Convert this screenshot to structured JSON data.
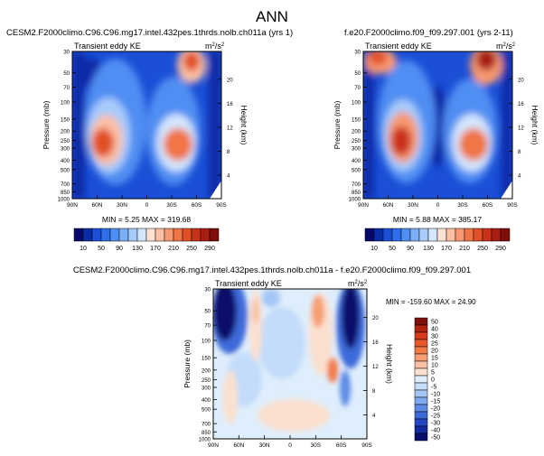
{
  "figure": {
    "title": "ANN"
  },
  "panels": [
    {
      "id": "top-left",
      "run": "CESM2.F2000climo.C96.C96.mg17.intel.432pes.1thrds.nolb.ch011a (yrs 1)",
      "subtitle": "Transient eddy KE",
      "units_base": "m",
      "units_sup1": "2",
      "units_slash": "/s",
      "units_sup2": "2",
      "stats": "MIN =   5.25   MAX = 319.68"
    },
    {
      "id": "top-right",
      "run": "f.e20.F2000climo.f09_f09.297.001 (yrs 2-11)",
      "subtitle": "Transient eddy KE",
      "units_base": "m",
      "units_sup1": "2",
      "units_slash": "/s",
      "units_sup2": "2",
      "stats": "MIN =   5.88   MAX = 385.17"
    },
    {
      "id": "bottom-diff",
      "run": "CESM2.F2000climo.C96.C96.mg17.intel.432pes.1thrds.nolb.ch011a - f.e20.F2000climo.f09_f09.297.001",
      "subtitle": "Transient eddy KE",
      "units_base": "m",
      "units_sup1": "2",
      "units_slash": "/s",
      "units_sup2": "2",
      "stats": "MIN = -159.60   MAX =  24.90"
    }
  ],
  "axes": {
    "ylabel": "Pressure (mb)",
    "ylabel_right": "Height (km)",
    "lat_ticks": [
      "90N",
      "60N",
      "30N",
      "0",
      "30S",
      "60S",
      "90S"
    ],
    "pressure_ticks": [
      "30",
      "50",
      "70",
      "100",
      "150",
      "200",
      "250",
      "300",
      "400",
      "500",
      "700",
      "850",
      "1000"
    ],
    "height_ticks": [
      "20",
      "16",
      "12",
      "8",
      "4"
    ]
  },
  "colorbar_top": {
    "labels": [
      "10",
      "50",
      "90",
      "130",
      "170",
      "210",
      "250",
      "290"
    ],
    "colors": [
      "#08086b",
      "#0b2ca8",
      "#1a4fd6",
      "#2e6ee8",
      "#4f8ef2",
      "#7aaef7",
      "#a7cbfb",
      "#d4e6fd",
      "#fde2d4",
      "#fbbfa4",
      "#f79970",
      "#f07446",
      "#e24f26",
      "#c9321a",
      "#a81e12",
      "#7d0e0a"
    ]
  },
  "colorbar_diff": {
    "labels": [
      "50",
      "40",
      "30",
      "25",
      "20",
      "15",
      "10",
      "5",
      "0",
      "-5",
      "-10",
      "-15",
      "-20",
      "-25",
      "-30",
      "-40",
      "-50"
    ],
    "colors": [
      "#7d0e0a",
      "#b3210f",
      "#d63a1d",
      "#e8572e",
      "#f27a48",
      "#f69e72",
      "#f9c1a3",
      "#fbe0cf",
      "#dfeefc",
      "#c3dcfa",
      "#a3c6f5",
      "#7faaef",
      "#5c8be6",
      "#3c6bd9",
      "#2246c2",
      "#122b9c",
      "#080f6b"
    ]
  },
  "chart_data": [
    {
      "type": "heatmap",
      "title": "Transient eddy KE",
      "run": "CESM2 C96 ch011a (yrs 1)",
      "x_axis": "latitude",
      "x_ticks": [
        "90N",
        "60N",
        "30N",
        "0",
        "30S",
        "60S",
        "90S"
      ],
      "y_axis": "pressure (mb)",
      "min": 5.25,
      "max": 319.68,
      "features": [
        {
          "lat": 38,
          "p": 250,
          "value": 290
        },
        {
          "lat": -45,
          "p": 250,
          "value": 300
        },
        {
          "lat": -52,
          "p": 35,
          "value": 260
        },
        {
          "lat": 60,
          "p": 40,
          "value": 30
        }
      ]
    },
    {
      "type": "heatmap",
      "title": "Transient eddy KE",
      "run": "f.e20.F2000climo.f09_f09.297.001 (yrs 2-11)",
      "x_axis": "latitude",
      "y_axis": "pressure (mb)",
      "min": 5.88,
      "max": 385.17,
      "features": [
        {
          "lat": 40,
          "p": 230,
          "value": 300
        },
        {
          "lat": -45,
          "p": 250,
          "value": 300
        },
        {
          "lat": -55,
          "p": 35,
          "value": 370
        },
        {
          "lat": 70,
          "p": 35,
          "value": 250
        }
      ]
    },
    {
      "type": "heatmap",
      "title": "Transient eddy KE (difference)",
      "x_axis": "latitude",
      "y_axis": "pressure (mb)",
      "min": -159.6,
      "max": 24.9,
      "features": [
        {
          "lat": 68,
          "p": 50,
          "value": -50
        },
        {
          "lat": -58,
          "p": 45,
          "value": -50
        },
        {
          "lat": -30,
          "p": 100,
          "value": 20
        },
        {
          "lat": 25,
          "p": 80,
          "value": 15
        },
        {
          "lat": 5,
          "p": 60,
          "value": -10
        }
      ]
    }
  ]
}
